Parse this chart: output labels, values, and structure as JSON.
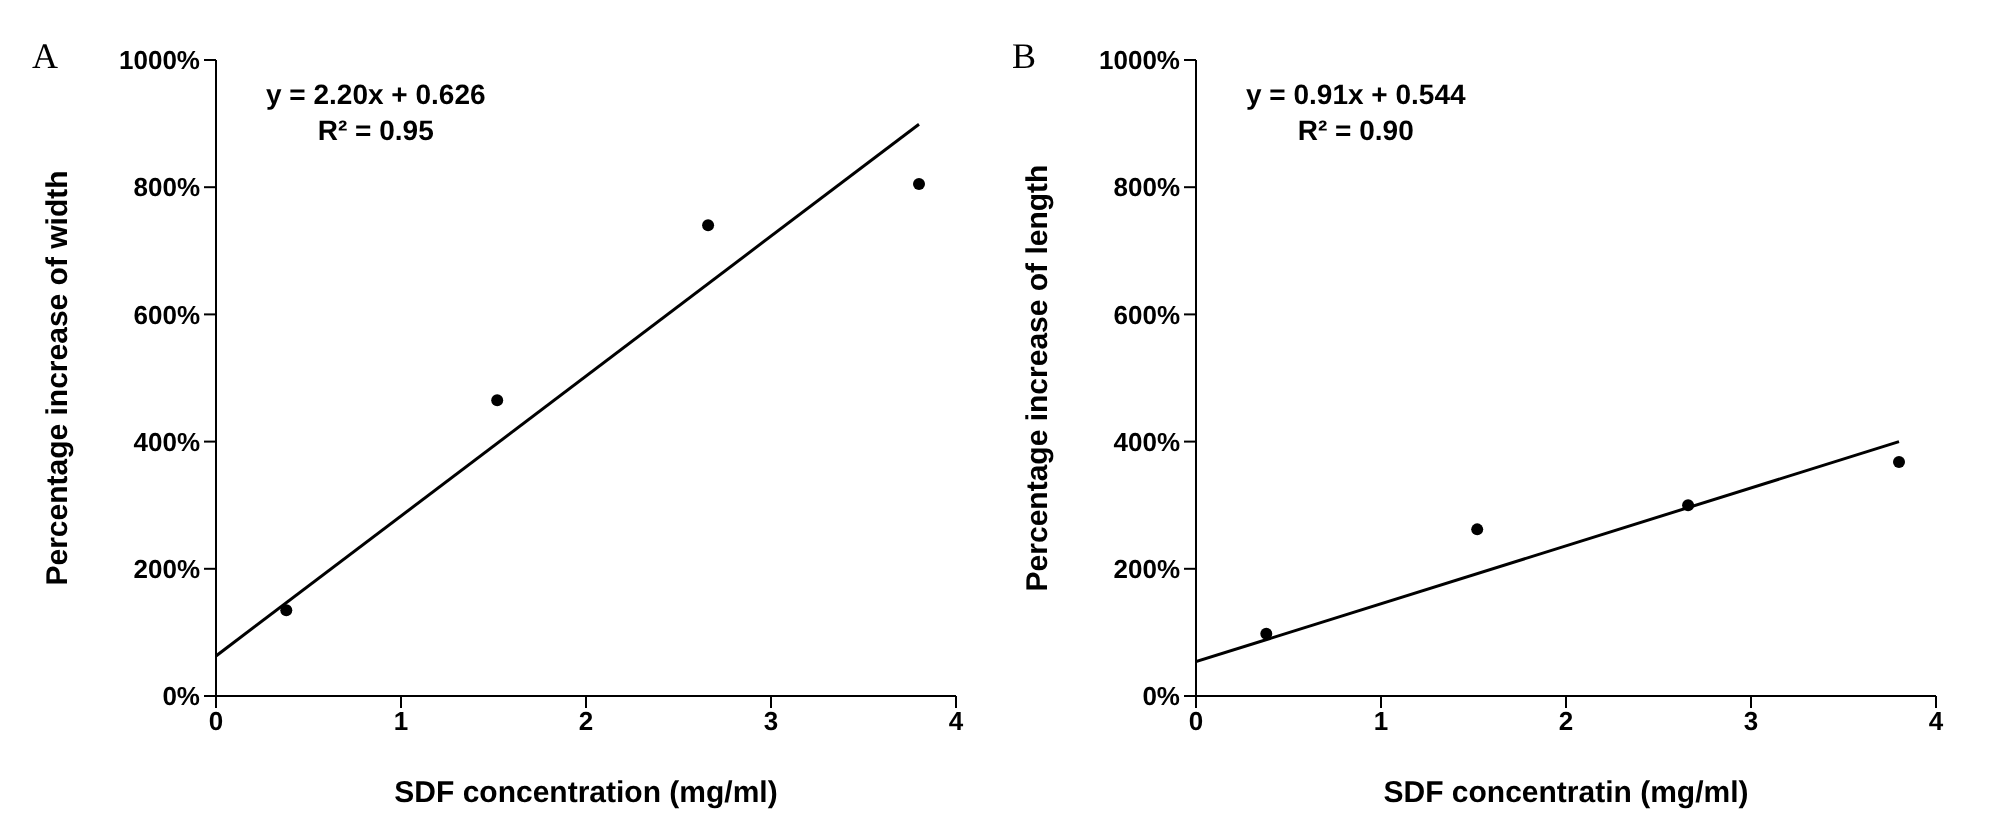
{
  "chart_data": [
    {
      "type": "scatter",
      "title": "A",
      "xlabel": "SDF concentration (mg/ml)",
      "ylabel": "Percentage increase of width",
      "annotations": [
        "y = 2.20x + 0.626",
        "R² = 0.95"
      ],
      "series": [
        {
          "color": "#000000",
          "marker": "circle",
          "x": [
            0.38,
            1.52,
            2.66,
            3.8
          ],
          "values": [
            135,
            465,
            740,
            805
          ]
        },
        {
          "type": "line",
          "color": "#000000",
          "marker": "none",
          "x": [
            0,
            3.8
          ],
          "values": [
            63,
            899
          ]
        }
      ],
      "xlim": [
        0,
        4
      ],
      "xticks": [
        0,
        1,
        2,
        3,
        4
      ],
      "ylim": [
        0,
        1000
      ],
      "yticks": [
        {
          "value": 0,
          "label": "0%"
        },
        {
          "value": 200,
          "label": "200%"
        },
        {
          "value": 400,
          "label": "400%"
        },
        {
          "value": 600,
          "label": "600%"
        },
        {
          "value": 800,
          "label": "800%"
        },
        {
          "value": 1000,
          "label": "1000%"
        }
      ],
      "grid": false
    },
    {
      "type": "scatter",
      "title": "B",
      "xlabel": "SDF concentratin (mg/ml)",
      "ylabel": "Percentage increase of length",
      "annotations": [
        "y = 0.91x + 0.544",
        "R² = 0.90"
      ],
      "series": [
        {
          "color": "#000000",
          "marker": "circle",
          "x": [
            0.38,
            1.52,
            2.66,
            3.8
          ],
          "values": [
            98,
            262,
            300,
            368
          ]
        },
        {
          "type": "line",
          "color": "#000000",
          "marker": "none",
          "x": [
            0,
            3.8
          ],
          "values": [
            54,
            400
          ]
        }
      ],
      "xlim": [
        0,
        4
      ],
      "xticks": [
        0,
        1,
        2,
        3,
        4
      ],
      "ylim": [
        0,
        1000
      ],
      "yticks": [
        {
          "value": 0,
          "label": "0%"
        },
        {
          "value": 200,
          "label": "200%"
        },
        {
          "value": 400,
          "label": "400%"
        },
        {
          "value": 600,
          "label": "600%"
        },
        {
          "value": 800,
          "label": "800%"
        },
        {
          "value": 1000,
          "label": "1000%"
        }
      ],
      "grid": false
    }
  ]
}
